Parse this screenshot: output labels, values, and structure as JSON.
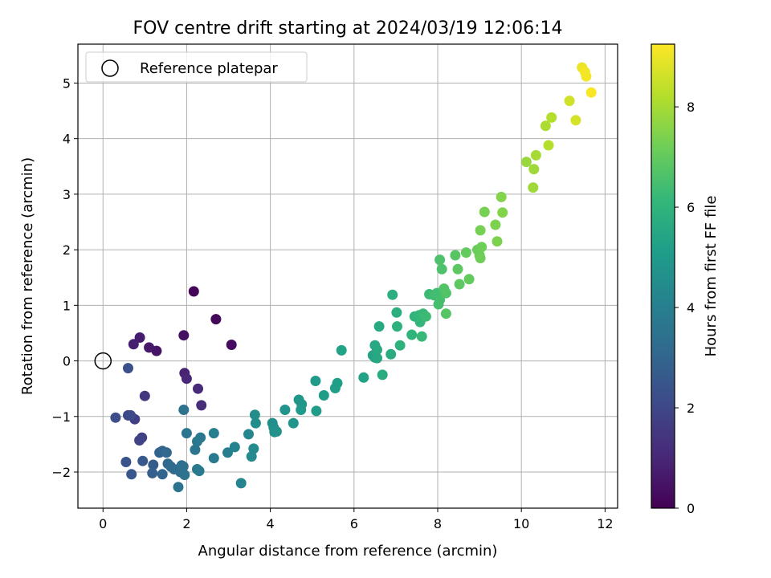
{
  "chart_data": {
    "type": "scatter",
    "title": "FOV centre drift starting at 2024/03/19 12:06:14",
    "xlabel": "Angular distance from reference (arcmin)",
    "ylabel": "Rotation from reference (arcmin)",
    "xlim": [
      -0.6,
      12.3
    ],
    "ylim": [
      -2.65,
      5.7
    ],
    "xticks": [
      0,
      2,
      4,
      6,
      8,
      10,
      12
    ],
    "yticks": [
      -2,
      -1,
      0,
      1,
      2,
      3,
      4,
      5
    ],
    "grid": true,
    "legend": {
      "position": "top-left",
      "entries": [
        "Reference platepar"
      ]
    },
    "reference_point": {
      "x": 0,
      "y": 0
    },
    "colorbar": {
      "label": "Hours from first FF file",
      "range": [
        0,
        9.25
      ],
      "ticks": [
        0,
        2,
        4,
        6,
        8
      ],
      "colormap": "viridis"
    },
    "colors": {
      "viridis": [
        "#440154",
        "#482878",
        "#3e4989",
        "#31688e",
        "#26828e",
        "#1f9e89",
        "#35b779",
        "#6ece58",
        "#b5de2b",
        "#fde725"
      ],
      "grid": "#b0b0b0"
    },
    "points": [
      [
        2.17,
        1.25,
        0.1
      ],
      [
        2.7,
        0.75,
        0.2
      ],
      [
        3.07,
        0.29,
        0.3
      ],
      [
        1.93,
        0.46,
        0.4
      ],
      [
        1.28,
        0.18,
        0.5
      ],
      [
        1.1,
        0.24,
        0.6
      ],
      [
        0.88,
        0.42,
        0.7
      ],
      [
        0.73,
        0.3,
        0.8
      ],
      [
        1.95,
        -0.22,
        0.9
      ],
      [
        2.0,
        -0.32,
        1.0
      ],
      [
        2.27,
        -0.5,
        1.1
      ],
      [
        2.35,
        -0.8,
        1.2
      ],
      [
        1.0,
        -0.63,
        1.5
      ],
      [
        0.76,
        -1.05,
        1.7
      ],
      [
        0.93,
        -1.38,
        1.8
      ],
      [
        0.87,
        -1.43,
        1.9
      ],
      [
        0.6,
        -0.98,
        2.0
      ],
      [
        0.66,
        -0.98,
        2.1
      ],
      [
        0.3,
        -1.02,
        2.2
      ],
      [
        0.6,
        -0.13,
        2.3
      ],
      [
        0.55,
        -1.82,
        2.4
      ],
      [
        0.68,
        -2.04,
        2.5
      ],
      [
        0.95,
        -1.8,
        2.6
      ],
      [
        1.2,
        -1.87,
        2.7
      ],
      [
        1.18,
        -2.02,
        2.8
      ],
      [
        1.35,
        -1.65,
        2.9
      ],
      [
        1.42,
        -1.62,
        3.0
      ],
      [
        1.42,
        -2.04,
        3.0
      ],
      [
        1.52,
        -1.65,
        3.1
      ],
      [
        1.55,
        -1.85,
        3.1
      ],
      [
        1.62,
        -1.9,
        3.2
      ],
      [
        1.7,
        -1.95,
        3.2
      ],
      [
        1.82,
        -1.95,
        3.3
      ],
      [
        1.85,
        -2.0,
        3.3
      ],
      [
        1.92,
        -1.9,
        3.4
      ],
      [
        1.88,
        -1.88,
        3.4
      ],
      [
        1.95,
        -2.05,
        3.5
      ],
      [
        1.8,
        -2.27,
        3.5
      ],
      [
        1.93,
        -0.88,
        3.5
      ],
      [
        2.0,
        -1.3,
        3.6
      ],
      [
        2.2,
        -1.6,
        3.6
      ],
      [
        2.25,
        -1.45,
        3.7
      ],
      [
        2.33,
        -1.38,
        3.7
      ],
      [
        2.25,
        -1.95,
        3.7
      ],
      [
        2.3,
        -1.98,
        3.8
      ],
      [
        2.65,
        -1.75,
        3.8
      ],
      [
        2.65,
        -1.3,
        3.9
      ],
      [
        2.98,
        -1.65,
        4.0
      ],
      [
        3.15,
        -1.55,
        4.1
      ],
      [
        3.3,
        -2.2,
        4.2
      ],
      [
        3.48,
        -1.32,
        4.3
      ],
      [
        3.55,
        -1.72,
        4.4
      ],
      [
        3.6,
        -1.58,
        4.4
      ],
      [
        3.63,
        -0.97,
        4.5
      ],
      [
        3.65,
        -1.12,
        4.5
      ],
      [
        4.05,
        -1.12,
        4.6
      ],
      [
        4.08,
        -1.2,
        4.6
      ],
      [
        4.1,
        -1.28,
        4.7
      ],
      [
        4.15,
        -1.27,
        4.7
      ],
      [
        4.35,
        -0.88,
        4.8
      ],
      [
        4.55,
        -1.12,
        4.8
      ],
      [
        4.68,
        -0.7,
        4.9
      ],
      [
        4.75,
        -0.78,
        4.9
      ],
      [
        4.73,
        -0.88,
        5.0
      ],
      [
        5.08,
        -0.36,
        5.0
      ],
      [
        5.1,
        -0.9,
        5.1
      ],
      [
        5.28,
        -0.62,
        5.1
      ],
      [
        5.55,
        -0.49,
        5.2
      ],
      [
        5.6,
        -0.4,
        5.2
      ],
      [
        5.7,
        0.19,
        5.3
      ],
      [
        6.23,
        -0.3,
        5.3
      ],
      [
        6.45,
        0.1,
        5.4
      ],
      [
        6.5,
        0.06,
        5.4
      ],
      [
        6.5,
        0.28,
        5.5
      ],
      [
        6.55,
        0.05,
        5.5
      ],
      [
        6.55,
        0.2,
        5.6
      ],
      [
        6.6,
        0.62,
        5.6
      ],
      [
        6.68,
        -0.25,
        5.7
      ],
      [
        6.88,
        0.12,
        5.7
      ],
      [
        6.92,
        1.19,
        5.8
      ],
      [
        7.02,
        0.87,
        5.8
      ],
      [
        7.03,
        0.62,
        5.9
      ],
      [
        7.1,
        0.28,
        5.9
      ],
      [
        7.38,
        0.47,
        6.0
      ],
      [
        7.45,
        0.8,
        6.0
      ],
      [
        7.55,
        0.82,
        6.1
      ],
      [
        7.58,
        0.7,
        6.1
      ],
      [
        7.62,
        0.44,
        6.2
      ],
      [
        7.65,
        0.85,
        6.2
      ],
      [
        7.72,
        0.8,
        6.3
      ],
      [
        7.8,
        1.2,
        6.3
      ],
      [
        7.92,
        1.18,
        6.4
      ],
      [
        7.98,
        1.22,
        6.4
      ],
      [
        8.02,
        1.02,
        6.5
      ],
      [
        8.05,
        1.1,
        6.5
      ],
      [
        8.05,
        1.82,
        6.6
      ],
      [
        8.1,
        1.65,
        6.6
      ],
      [
        8.15,
        1.3,
        6.7
      ],
      [
        8.2,
        1.22,
        6.7
      ],
      [
        8.2,
        0.85,
        6.8
      ],
      [
        8.42,
        1.9,
        6.8
      ],
      [
        8.48,
        1.65,
        6.9
      ],
      [
        8.52,
        1.38,
        6.9
      ],
      [
        8.68,
        1.95,
        7.0
      ],
      [
        8.75,
        1.47,
        7.0
      ],
      [
        8.95,
        2.0,
        7.1
      ],
      [
        9.0,
        1.9,
        7.1
      ],
      [
        9.05,
        2.05,
        7.2
      ],
      [
        9.02,
        1.85,
        7.2
      ],
      [
        9.02,
        2.35,
        7.3
      ],
      [
        9.12,
        2.68,
        7.3
      ],
      [
        9.38,
        2.45,
        7.4
      ],
      [
        9.42,
        2.15,
        7.4
      ],
      [
        9.52,
        2.95,
        7.5
      ],
      [
        9.55,
        2.67,
        7.5
      ],
      [
        10.12,
        3.58,
        7.8
      ],
      [
        10.28,
        3.12,
        7.9
      ],
      [
        10.3,
        3.45,
        7.9
      ],
      [
        10.35,
        3.7,
        8.0
      ],
      [
        10.58,
        4.23,
        8.1
      ],
      [
        10.65,
        3.88,
        8.2
      ],
      [
        10.72,
        4.38,
        8.2
      ],
      [
        11.15,
        4.68,
        8.6
      ],
      [
        11.3,
        4.33,
        8.7
      ],
      [
        11.45,
        5.28,
        9.0
      ],
      [
        11.52,
        5.2,
        9.1
      ],
      [
        11.55,
        5.12,
        9.1
      ],
      [
        11.67,
        4.83,
        9.2
      ]
    ]
  }
}
